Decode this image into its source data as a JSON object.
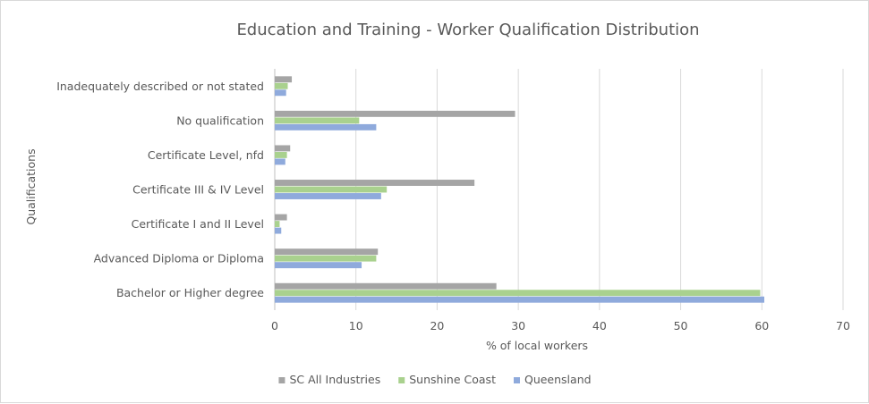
{
  "chart_data": {
    "type": "bar",
    "orientation": "horizontal",
    "title": "Education and Training - Worker Qualification Distribution",
    "xlabel": "% of local workers",
    "ylabel": "Qualifications",
    "xlim": [
      0,
      70
    ],
    "xticks": [
      0,
      10,
      20,
      30,
      40,
      50,
      60,
      70
    ],
    "grid": "vertical",
    "legend_position": "bottom",
    "categories": [
      "Inadequately described or not stated",
      "No qualification",
      "Certificate Level, nfd",
      "Certificate III & IV Level",
      "Certificate I and II Level",
      "Advanced Diploma or Diploma",
      "Bachelor or Higher degree"
    ],
    "series": [
      {
        "name": "SC All Industries",
        "color": "#a5a5a5",
        "values": [
          2.1,
          29.6,
          1.9,
          24.6,
          1.5,
          12.7,
          27.3
        ]
      },
      {
        "name": "Sunshine Coast",
        "color": "#a9d18e",
        "values": [
          1.6,
          10.4,
          1.5,
          13.8,
          0.6,
          12.5,
          59.8
        ]
      },
      {
        "name": "Queensland",
        "color": "#8faadc",
        "values": [
          1.4,
          12.5,
          1.3,
          13.1,
          0.8,
          10.7,
          60.3
        ]
      }
    ]
  }
}
